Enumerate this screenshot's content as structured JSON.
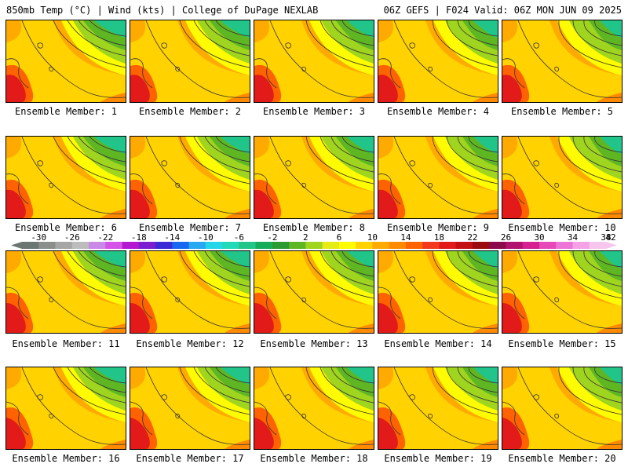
{
  "header": {
    "left": "850mb Temp (°C) | Wind (kts) | College of DuPage NEXLAB",
    "right": "06Z GEFS | F024 Valid: 06Z MON JUN 09 2025"
  },
  "members": [
    {
      "label": "Ensemble Member: 1"
    },
    {
      "label": "Ensemble Member: 2"
    },
    {
      "label": "Ensemble Member: 3"
    },
    {
      "label": "Ensemble Member: 4"
    },
    {
      "label": "Ensemble Member: 5"
    },
    {
      "label": "Ensemble Member: 6"
    },
    {
      "label": "Ensemble Member: 7"
    },
    {
      "label": "Ensemble Member: 8"
    },
    {
      "label": "Ensemble Member: 9"
    },
    {
      "label": "Ensemble Member: 10"
    },
    {
      "label": "Ensemble Member: 11"
    },
    {
      "label": "Ensemble Member: 12"
    },
    {
      "label": "Ensemble Member: 13"
    },
    {
      "label": "Ensemble Member: 14"
    },
    {
      "label": "Ensemble Member: 15"
    },
    {
      "label": "Ensemble Member: 16"
    },
    {
      "label": "Ensemble Member: 17"
    },
    {
      "label": "Ensemble Member: 18"
    },
    {
      "label": "Ensemble Member: 19"
    },
    {
      "label": "Ensemble Member: 20"
    }
  ],
  "colorbar": {
    "tick_labels": [
      "-30",
      "-26",
      "-22",
      "-18",
      "-14",
      "-10",
      "-6",
      "-2",
      "2",
      "6",
      "10",
      "14",
      "18",
      "22",
      "26",
      "30",
      "34",
      "38",
      "42"
    ],
    "colors": [
      "#6b7572",
      "#8a8f8c",
      "#a5a6a5",
      "#bcbcbc",
      "#c989e6",
      "#d653e9",
      "#b417d2",
      "#7a1ecf",
      "#3a2bd6",
      "#1967f0",
      "#29a8f2",
      "#25d6e8",
      "#22d9b8",
      "#21c58a",
      "#15ad5a",
      "#2b9a30",
      "#5fb623",
      "#9fd41f",
      "#e6ec15",
      "#fffb00",
      "#ffd200",
      "#ffaa00",
      "#ff8a00",
      "#ff6200",
      "#f2391d",
      "#e21a1a",
      "#c40f12",
      "#9b0a0c",
      "#8b0a4a",
      "#b2126f",
      "#d6208f",
      "#e649b8",
      "#ee74d6",
      "#f4a1e6",
      "#f7c6ef"
    ]
  }
}
